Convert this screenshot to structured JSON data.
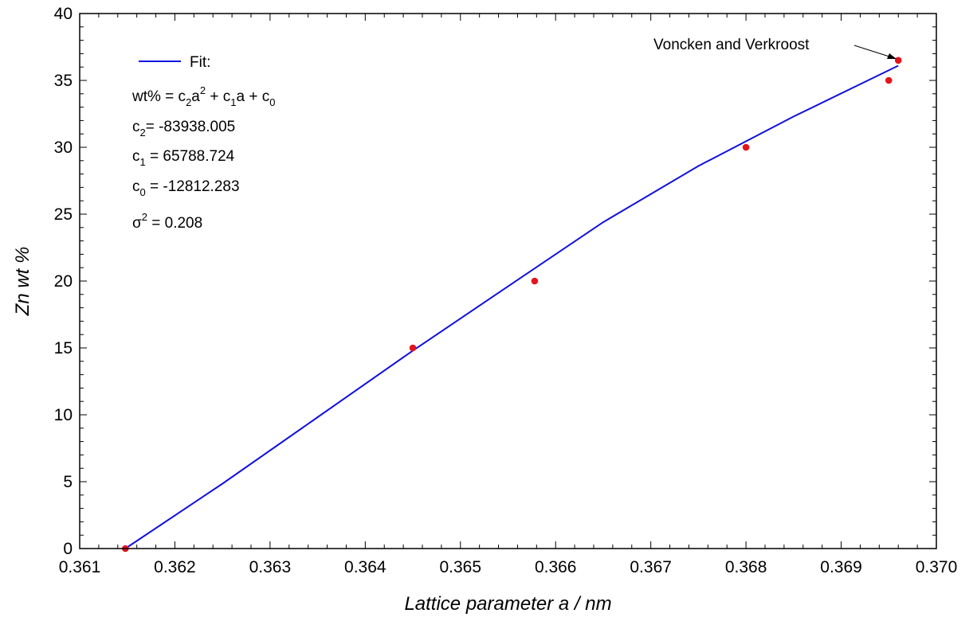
{
  "chart_data": {
    "type": "scatter",
    "title": "",
    "xlabel": "Lattice parameter a / nm",
    "ylabel": "Zn wt %",
    "xlim": [
      0.361,
      0.37
    ],
    "ylim": [
      0,
      40
    ],
    "x_ticks": [
      0.361,
      0.362,
      0.363,
      0.364,
      0.365,
      0.366,
      0.367,
      0.368,
      0.369,
      0.37
    ],
    "x_tick_labels": [
      "0.361",
      "0.362",
      "0.363",
      "0.364",
      "0.365",
      "0.366",
      "0.367",
      "0.368",
      "0.369",
      "0.370"
    ],
    "y_ticks": [
      0,
      5,
      10,
      15,
      20,
      25,
      30,
      35,
      40
    ],
    "y_tick_labels": [
      "0",
      "5",
      "10",
      "15",
      "20",
      "25",
      "30",
      "35",
      "40"
    ],
    "grid": false,
    "legend_position": "top-left",
    "series": [
      {
        "kind": "points",
        "color": "#e3141b",
        "x": [
          0.36148,
          0.3645,
          0.36578,
          0.368,
          0.3695,
          0.3696
        ],
        "y": [
          0,
          15,
          20,
          30,
          35,
          36.5
        ]
      },
      {
        "kind": "line",
        "name": "Fit:",
        "color": "#1010e0",
        "x": [
          0.36148,
          0.3625,
          0.3635,
          0.3645,
          0.3655,
          0.3665,
          0.3675,
          0.3685,
          0.3696
        ],
        "y": [
          0,
          4.85,
          9.82,
          14.8,
          19.6,
          24.4,
          28.6,
          32.3,
          36.1
        ]
      }
    ],
    "annotations": [
      {
        "text": "Voncken and Verkroost",
        "target": [
          0.3696,
          36.5
        ]
      }
    ],
    "fit_text": {
      "equation": {
        "a": "wt% = c",
        "b": "2",
        "c": "a",
        "d": "2",
        "e": " + c",
        "f": "1",
        "g": "a + c",
        "h": "0"
      },
      "c2": {
        "a": "c",
        "b": "2",
        "c": "= -83938.005"
      },
      "c1": {
        "a": "c",
        "b": "1",
        "c": " = 65788.724"
      },
      "c0": {
        "a": "c",
        "b": "0",
        "c": " = -12812.283"
      },
      "sigma": {
        "a": "σ",
        "b": "2",
        "c": " = 0.208"
      }
    }
  }
}
